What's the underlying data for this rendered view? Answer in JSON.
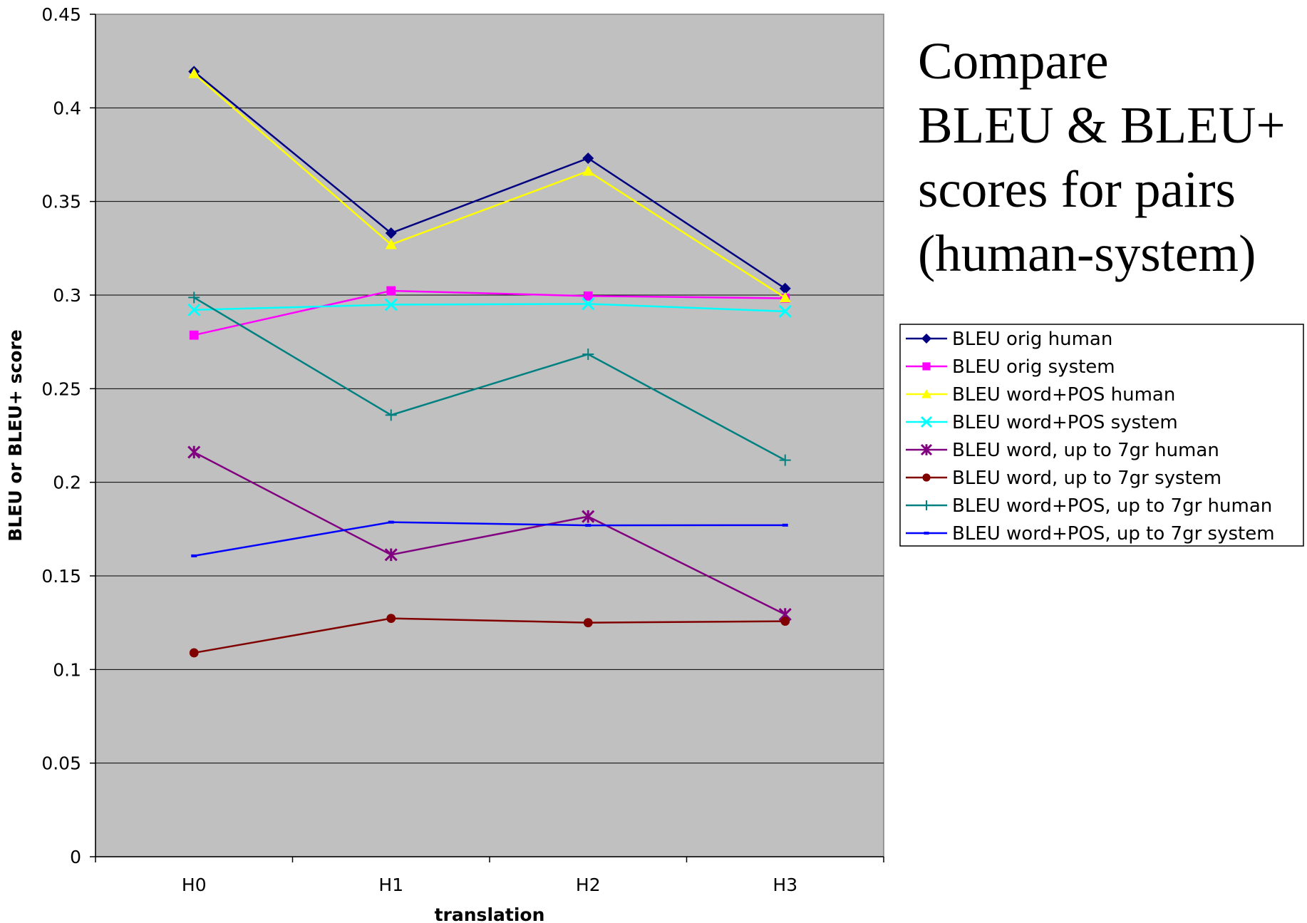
{
  "chart_data": {
    "type": "line",
    "title_lines": [
      "Compare",
      "BLEU & BLEU+",
      "scores for pairs",
      "(human-system)"
    ],
    "xlabel": "translation",
    "ylabel": "BLEU or BLEU+ score",
    "categories": [
      "H0",
      "H1",
      "H2",
      "H3"
    ],
    "ylim": [
      0,
      0.45
    ],
    "yticks": [
      0,
      0.05,
      0.1,
      0.15,
      0.2,
      0.25,
      0.3,
      0.35,
      0.4,
      0.45
    ],
    "ytick_labels": [
      "0",
      "0.05",
      "0.1",
      "0.15",
      "0.2",
      "0.25",
      "0.3",
      "0.35",
      "0.4",
      "0.45"
    ],
    "grid": true,
    "plot_background": "#c0c0c0",
    "legend_position": "right",
    "series": [
      {
        "name": "BLEU orig human",
        "color": "#000080",
        "marker": "diamond",
        "values": [
          0.4194,
          0.3331,
          0.3731,
          0.3035
        ]
      },
      {
        "name": "BLEU orig system",
        "color": "#ff00ff",
        "marker": "square",
        "values": [
          0.2786,
          0.3023,
          0.2995,
          0.2983
        ]
      },
      {
        "name": "BLEU word+POS human",
        "color": "#ffff00",
        "marker": "triangle",
        "values": [
          0.4183,
          0.327,
          0.3662,
          0.2986
        ]
      },
      {
        "name": "BLEU word+POS system",
        "color": "#00ffff",
        "marker": "x",
        "values": [
          0.2921,
          0.2949,
          0.2953,
          0.2913
        ]
      },
      {
        "name": "BLEU word, up to 7gr human",
        "color": "#800080",
        "marker": "star",
        "values": [
          0.2161,
          0.1613,
          0.1817,
          0.1294
        ]
      },
      {
        "name": "BLEU word, up to 7gr system",
        "color": "#800000",
        "marker": "circle",
        "values": [
          0.1089,
          0.1273,
          0.125,
          0.1258
        ]
      },
      {
        "name": "BLEU word+POS, up to 7gr human",
        "color": "#008080",
        "marker": "plus",
        "values": [
          0.2987,
          0.2359,
          0.2684,
          0.2118
        ]
      },
      {
        "name": "BLEU word+POS, up to 7gr system",
        "color": "#0000ff",
        "marker": "dash",
        "values": [
          0.1607,
          0.1787,
          0.177,
          0.1771
        ]
      }
    ]
  }
}
